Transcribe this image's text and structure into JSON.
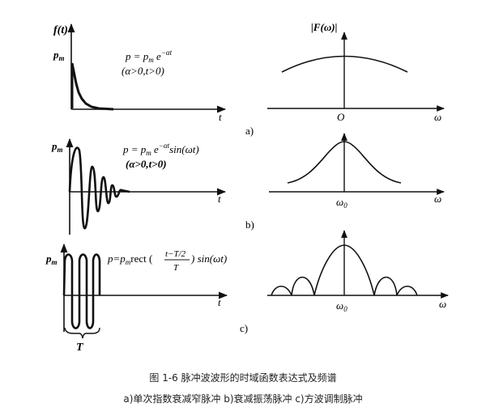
{
  "panels": {
    "a": {
      "y_label": "f(t)",
      "peak": "p",
      "peak_sub": "m",
      "formula": "p = p",
      "formula_sub": "m",
      "formula_rest": " e",
      "formula_exp": "−αt",
      "condition": "(α>0,t>0)",
      "t_axis": "t",
      "spectrum_label": "|F(ω)|",
      "origin": "O",
      "omega_axis": "ω",
      "tag": "a)"
    },
    "b": {
      "peak": "p",
      "peak_sub": "m",
      "formula": "p = p",
      "formula_sub": "m",
      "formula_rest": " e",
      "formula_exp": "−αt",
      "formula_tail": "sin(ωt)",
      "condition": "(α>0,t>0)",
      "t_axis": "t",
      "center": "ω",
      "center_sub": "0",
      "omega_axis": "ω",
      "tag": "b)"
    },
    "c": {
      "peak": "p",
      "peak_sub": "m",
      "formula": "p=p",
      "formula_sub": "m",
      "formula_rect": "rect (",
      "numerator": "t−T/2",
      "denominator": "T",
      "formula_tail": ") sin(ωt)",
      "period": "T",
      "t_axis": "t",
      "center": "ω",
      "center_sub": "0",
      "omega_axis": "ω",
      "tag": "c)"
    }
  },
  "caption": {
    "title": "图 1-6 脉冲波波形的时域函数表达式及频谱",
    "subtitle": "a)单次指数衰减窄脉冲 b)衰减振荡脉冲 c)方波调制脉冲"
  }
}
